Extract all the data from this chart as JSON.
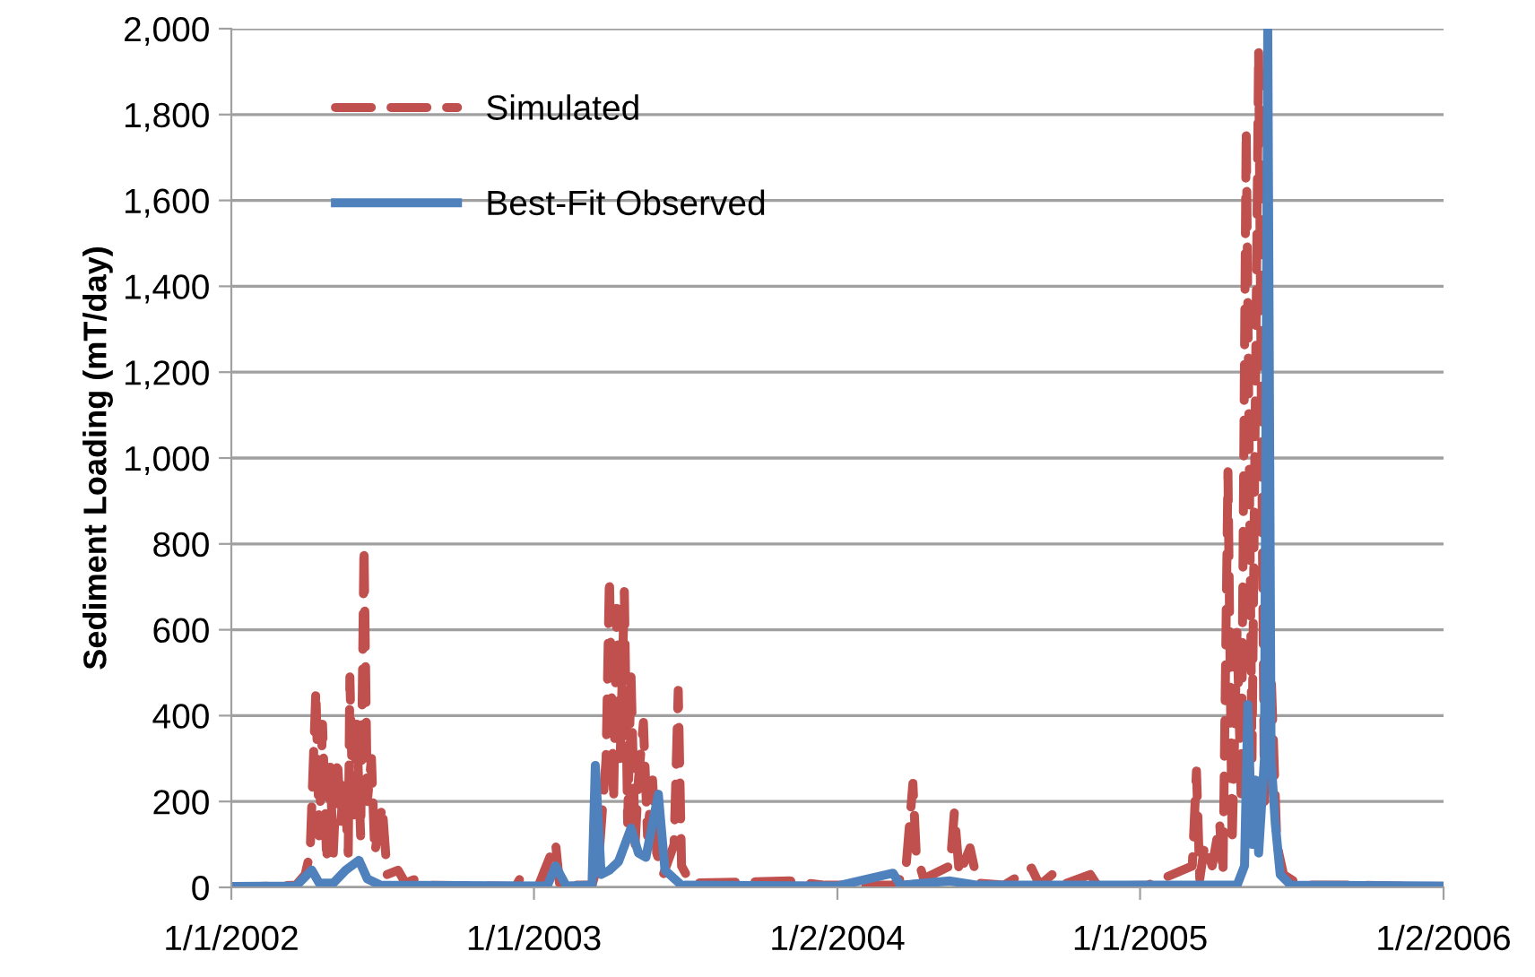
{
  "chart_data": {
    "type": "line",
    "ylabel": "Sediment Loading (mT/day)",
    "xlim": [
      "2002-01-01",
      "2006-01-02"
    ],
    "ylim": [
      0,
      2000
    ],
    "xticks": [
      {
        "value": "2002-01-01",
        "label": "1/1/2002"
      },
      {
        "value": "2003-01-01",
        "label": "1/1/2003"
      },
      {
        "value": "2004-01-02",
        "label": "1/2/2004"
      },
      {
        "value": "2005-01-01",
        "label": "1/1/2005"
      },
      {
        "value": "2006-01-02",
        "label": "1/2/2006"
      }
    ],
    "yticks": [
      {
        "value": 0,
        "label": "0"
      },
      {
        "value": 200,
        "label": "200"
      },
      {
        "value": 400,
        "label": "400"
      },
      {
        "value": 600,
        "label": "600"
      },
      {
        "value": 800,
        "label": "800"
      },
      {
        "value": 1000,
        "label": "1,000"
      },
      {
        "value": 1200,
        "label": "1,200"
      },
      {
        "value": 1400,
        "label": "1,400"
      },
      {
        "value": 1600,
        "label": "1,600"
      },
      {
        "value": 1800,
        "label": "1,800"
      },
      {
        "value": 2000,
        "label": "2,000"
      }
    ],
    "grid": "y",
    "legend": "top left",
    "marker": "none",
    "series": [
      {
        "name": "Simulated",
        "color": "#c0504d",
        "line_style": "dashed",
        "x": [
          "2002-01-01",
          "2002-03-20",
          "2002-03-31",
          "2002-04-06",
          "2002-04-13",
          "2002-04-17",
          "2002-04-21",
          "2002-04-26",
          "2002-04-30",
          "2002-05-04",
          "2002-05-09",
          "2002-05-13",
          "2002-05-17",
          "2002-05-22",
          "2002-05-24",
          "2002-05-28",
          "2002-06-01",
          "2002-06-06",
          "2002-06-10",
          "2002-06-14",
          "2002-06-19",
          "2002-06-23",
          "2002-07-02",
          "2002-07-08",
          "2002-07-21",
          "2002-07-30",
          "2002-08-12",
          "2002-08-29",
          "2002-12-10",
          "2002-12-15",
          "2002-12-20",
          "2003-01-06",
          "2003-01-27",
          "2003-02-01",
          "2003-03-12",
          "2003-03-20",
          "2003-03-29",
          "2003-04-02",
          "2003-04-07",
          "2003-04-11",
          "2003-04-15",
          "2003-04-20",
          "2003-04-24",
          "2003-04-28",
          "2003-05-03",
          "2003-05-07",
          "2003-05-13",
          "2003-05-18",
          "2003-05-24",
          "2003-05-29",
          "2003-06-06",
          "2003-06-19",
          "2003-06-24",
          "2003-06-28",
          "2003-07-09",
          "2003-11-05",
          "2003-12-18",
          "2004-03-09",
          "2004-03-24",
          "2004-04-02",
          "2004-04-06",
          "2004-04-15",
          "2004-05-17",
          "2004-05-22",
          "2004-05-28",
          "2004-06-10",
          "2004-06-19",
          "2004-07-21",
          "2004-08-23",
          "2004-09-02",
          "2004-09-17",
          "2004-09-28",
          "2004-11-02",
          "2004-11-11",
          "2005-01-10",
          "2005-03-05",
          "2005-03-10",
          "2005-03-14",
          "2005-03-20",
          "2005-03-29",
          "2005-04-07",
          "2005-04-11",
          "2005-04-17",
          "2005-04-22",
          "2005-04-28",
          "2005-05-03",
          "2005-05-09",
          "2005-05-16",
          "2005-05-24",
          "2005-05-31",
          "2005-06-08",
          "2005-06-15",
          "2005-06-23",
          "2005-07-13",
          "2005-09-27",
          "2006-01-02"
        ],
        "values": [
          0,
          5,
          30,
          80,
          460,
          120,
          380,
          60,
          280,
          80,
          300,
          150,
          250,
          80,
          490,
          150,
          380,
          120,
          793,
          200,
          300,
          80,
          190,
          30,
          40,
          10,
          20,
          5,
          2,
          20,
          2,
          2,
          104,
          5,
          5,
          60,
          300,
          722,
          200,
          650,
          300,
          689,
          150,
          500,
          100,
          250,
          384,
          120,
          250,
          80,
          30,
          100,
          459,
          50,
          10,
          15,
          5,
          5,
          30,
          242,
          80,
          20,
          50,
          175,
          30,
          92,
          10,
          5,
          45,
          5,
          30,
          5,
          30,
          3,
          5,
          50,
          271,
          20,
          100,
          50,
          150,
          30,
          968,
          100,
          600,
          200,
          1766,
          300,
          1950,
          200,
          500,
          100,
          30,
          5,
          5,
          0
        ]
      },
      {
        "name": "Best-Fit Observed",
        "color": "#4f81bd",
        "line_style": "solid",
        "x": [
          "2002-01-01",
          "2002-03-20",
          "2002-04-08",
          "2002-04-17",
          "2002-05-04",
          "2002-05-19",
          "2002-06-04",
          "2002-06-14",
          "2002-06-30",
          "2003-01-17",
          "2003-01-27",
          "2003-02-09",
          "2003-03-12",
          "2003-03-16",
          "2003-03-23",
          "2003-04-02",
          "2003-04-13",
          "2003-04-28",
          "2003-05-07",
          "2003-05-16",
          "2003-05-31",
          "2003-06-08",
          "2003-06-28",
          "2004-01-01",
          "2004-03-09",
          "2004-03-18",
          "2004-05-17",
          "2004-06-19",
          "2005-04-28",
          "2005-05-07",
          "2005-05-11",
          "2005-05-16",
          "2005-05-20",
          "2005-05-24",
          "2005-05-31",
          "2005-06-04",
          "2005-06-08",
          "2005-06-13",
          "2005-06-19",
          "2005-07-02",
          "2006-01-02"
        ],
        "values": [
          2,
          3,
          40,
          10,
          10,
          40,
          63,
          20,
          5,
          3,
          50,
          3,
          5,
          284,
          30,
          40,
          60,
          138,
          80,
          70,
          217,
          40,
          5,
          3,
          33,
          5,
          15,
          5,
          5,
          50,
          426,
          100,
          250,
          80,
          300,
          2000,
          300,
          150,
          30,
          5,
          3
        ]
      }
    ]
  }
}
